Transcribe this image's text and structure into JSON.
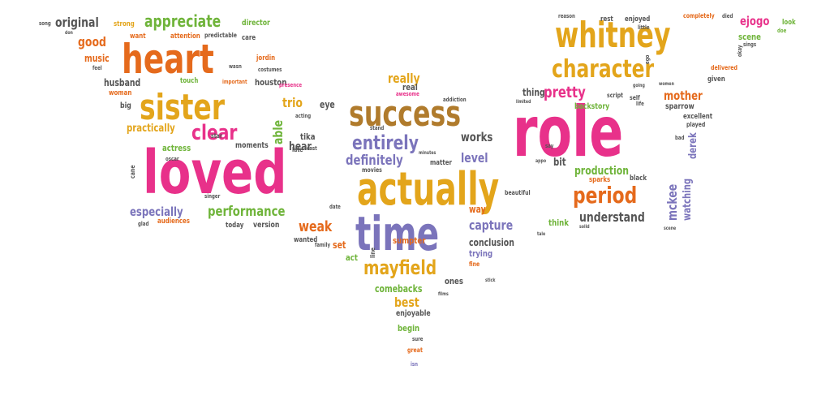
{
  "colors": {
    "pink": "#e8318a",
    "orange": "#e56a1c",
    "gold": "#e3a51b",
    "purple": "#7b74bb",
    "green": "#6fb43a",
    "brown": "#b07b2c",
    "gray": "#555555"
  },
  "words": [
    {
      "text": "loved",
      "color": "pink"
    },
    {
      "text": "role",
      "color": "pink"
    },
    {
      "text": "actually",
      "color": "gold"
    },
    {
      "text": "heart",
      "color": "orange"
    },
    {
      "text": "whitney",
      "color": "gold"
    },
    {
      "text": "success",
      "color": "brown"
    },
    {
      "text": "time",
      "color": "purple"
    },
    {
      "text": "sister",
      "color": "gold"
    },
    {
      "text": "character",
      "color": "gold"
    },
    {
      "text": "period",
      "color": "orange"
    },
    {
      "text": "entirely",
      "color": "purple"
    },
    {
      "text": "clear",
      "color": "pink"
    },
    {
      "text": "appreciate",
      "color": "green"
    },
    {
      "text": "mayfield",
      "color": "gold"
    },
    {
      "text": "performance",
      "color": "green"
    },
    {
      "text": "original",
      "color": "gray"
    },
    {
      "text": "definitely",
      "color": "purple"
    },
    {
      "text": "especially",
      "color": "purple"
    },
    {
      "text": "understand",
      "color": "gray"
    },
    {
      "text": "production",
      "color": "green"
    },
    {
      "text": "pretty",
      "color": "pink"
    },
    {
      "text": "works",
      "color": "gray"
    },
    {
      "text": "capture",
      "color": "purple"
    },
    {
      "text": "level",
      "color": "purple"
    },
    {
      "text": "weak",
      "color": "orange"
    },
    {
      "text": "trio",
      "color": "gold"
    },
    {
      "text": "able",
      "color": "green"
    },
    {
      "text": "mother",
      "color": "orange"
    },
    {
      "text": "really",
      "color": "gold"
    },
    {
      "text": "heart",
      "color": "orange"
    },
    {
      "text": "husband",
      "color": "gray"
    },
    {
      "text": "houston",
      "color": "gray"
    },
    {
      "text": "mckee",
      "color": "purple"
    },
    {
      "text": "watching",
      "color": "purple"
    },
    {
      "text": "ejogo",
      "color": "pink"
    },
    {
      "text": "scene",
      "color": "green"
    },
    {
      "text": "good",
      "color": "orange"
    },
    {
      "text": "music",
      "color": "orange"
    },
    {
      "text": "practically",
      "color": "gold"
    },
    {
      "text": "hear",
      "color": "gray"
    },
    {
      "text": "tika",
      "color": "gray"
    },
    {
      "text": "eye",
      "color": "gray"
    },
    {
      "text": "thing",
      "color": "gray"
    },
    {
      "text": "bit",
      "color": "gray"
    },
    {
      "text": "best",
      "color": "gold"
    },
    {
      "text": "comebacks",
      "color": "green"
    },
    {
      "text": "conclusion",
      "color": "gray"
    },
    {
      "text": "trying",
      "color": "purple"
    },
    {
      "text": "sumpter",
      "color": "orange"
    },
    {
      "text": "way",
      "color": "orange"
    },
    {
      "text": "set",
      "color": "orange"
    },
    {
      "text": "act",
      "color": "green"
    },
    {
      "text": "ones",
      "color": "gray"
    },
    {
      "text": "enjoyable",
      "color": "gray"
    },
    {
      "text": "begin",
      "color": "green"
    },
    {
      "text": "think",
      "color": "green"
    },
    {
      "text": "derek",
      "color": "purple"
    },
    {
      "text": "version",
      "color": "gray"
    },
    {
      "text": "today",
      "color": "gray"
    },
    {
      "text": "audiences",
      "color": "orange"
    },
    {
      "text": "actress",
      "color": "green"
    },
    {
      "text": "moments",
      "color": "gray"
    },
    {
      "text": "matter",
      "color": "gray"
    },
    {
      "text": "movies",
      "color": "gray"
    },
    {
      "text": "real",
      "color": "gray"
    },
    {
      "text": "big",
      "color": "gray"
    },
    {
      "text": "director",
      "color": "green"
    },
    {
      "text": "strong",
      "color": "gold"
    },
    {
      "text": "want",
      "color": "orange"
    },
    {
      "text": "attention",
      "color": "orange"
    },
    {
      "text": "predictable",
      "color": "gray"
    },
    {
      "text": "care",
      "color": "gray"
    },
    {
      "text": "jordin",
      "color": "orange"
    },
    {
      "text": "costumes",
      "color": "gray"
    },
    {
      "text": "touch",
      "color": "green"
    },
    {
      "text": "woman",
      "color": "orange"
    },
    {
      "text": "rest",
      "color": "gray"
    },
    {
      "text": "enjoyed",
      "color": "gray"
    },
    {
      "text": "completely",
      "color": "orange"
    },
    {
      "text": "look",
      "color": "green"
    },
    {
      "text": "doe",
      "color": "green"
    },
    {
      "text": "backstory",
      "color": "green"
    },
    {
      "text": "sparrow",
      "color": "gray"
    },
    {
      "text": "excellent",
      "color": "gray"
    },
    {
      "text": "played",
      "color": "gray"
    },
    {
      "text": "given",
      "color": "gray"
    },
    {
      "text": "delivered",
      "color": "orange"
    },
    {
      "text": "script",
      "color": "gray"
    },
    {
      "text": "self",
      "color": "gray"
    },
    {
      "text": "black",
      "color": "gray"
    },
    {
      "text": "sparks",
      "color": "orange"
    },
    {
      "text": "beautiful",
      "color": "gray"
    },
    {
      "text": "fine",
      "color": "orange"
    },
    {
      "text": "wanted",
      "color": "gray"
    },
    {
      "text": "family",
      "color": "gray"
    },
    {
      "text": "line",
      "color": "gray"
    },
    {
      "text": "great",
      "color": "orange"
    },
    {
      "text": "sure",
      "color": "gray"
    },
    {
      "text": "isn",
      "color": "purple"
    },
    {
      "text": "late",
      "color": "gray"
    },
    {
      "text": "cast",
      "color": "gray"
    },
    {
      "text": "date",
      "color": "gray"
    },
    {
      "text": "star",
      "color": "gray"
    },
    {
      "text": "oscar",
      "color": "gray"
    },
    {
      "text": "singer",
      "color": "gray"
    },
    {
      "text": "glad",
      "color": "gray"
    },
    {
      "text": "cane",
      "color": "gray"
    },
    {
      "text": "song",
      "color": "gray"
    },
    {
      "text": "don",
      "color": "gray"
    },
    {
      "text": "feel",
      "color": "gray"
    },
    {
      "text": "wasn",
      "color": "gray"
    },
    {
      "text": "important",
      "color": "orange"
    },
    {
      "text": "presence",
      "color": "pink"
    },
    {
      "text": "acting",
      "color": "gray"
    },
    {
      "text": "stand",
      "color": "gray"
    },
    {
      "text": "addiction",
      "color": "gray"
    },
    {
      "text": "awesome",
      "color": "pink"
    },
    {
      "text": "minutes",
      "color": "gray"
    },
    {
      "text": "limited",
      "color": "gray"
    },
    {
      "text": "say",
      "color": "gray"
    },
    {
      "text": "reason",
      "color": "gray"
    },
    {
      "text": "little",
      "color": "gray"
    },
    {
      "text": "died",
      "color": "gray"
    },
    {
      "text": "sings",
      "color": "gray"
    },
    {
      "text": "okay",
      "color": "gray"
    },
    {
      "text": "life",
      "color": "gray"
    },
    {
      "text": "women",
      "color": "gray"
    },
    {
      "text": "going",
      "color": "gray"
    },
    {
      "text": "bad",
      "color": "gray"
    },
    {
      "text": "tale",
      "color": "gray"
    },
    {
      "text": "appo",
      "color": "gray"
    },
    {
      "text": "solid",
      "color": "gray"
    },
    {
      "text": "scene",
      "color": "gray"
    },
    {
      "text": "ego",
      "color": "gray"
    },
    {
      "text": "films",
      "color": "gray"
    },
    {
      "text": "stick",
      "color": "gray"
    }
  ]
}
